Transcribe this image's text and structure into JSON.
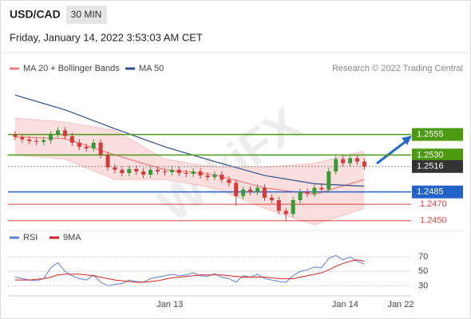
{
  "header": {
    "symbol": "USD/CAD",
    "interval": "30 MIN",
    "datetime": "Friday, January 14, 2022 3:53:03 AM CET"
  },
  "chart_data": [
    {
      "type": "candlestick",
      "credit": "Research © 2022 Trading Central",
      "watermark": "WikiFX",
      "up_color": "#3a9a3a",
      "down_color": "#d33b3b",
      "xlim": [
        0,
        56
      ],
      "ylim": [
        1.244,
        1.261
      ],
      "xticks": [
        {
          "value": 22.7,
          "label": "Jan 13"
        },
        {
          "value": 47.3,
          "label": "Jan 14"
        },
        {
          "value": 55.1,
          "label": "Jan 22"
        }
      ],
      "x": [
        1,
        2,
        3,
        4,
        5,
        6,
        7,
        8,
        9,
        10,
        11,
        12,
        13,
        14,
        15,
        16,
        17,
        18,
        19,
        20,
        21,
        22,
        23,
        24,
        25,
        26,
        27,
        28,
        29,
        30,
        31,
        32,
        33,
        34,
        35,
        36,
        37,
        38,
        39,
        40,
        41,
        42,
        43,
        44,
        45,
        46,
        47,
        48,
        49,
        50
      ],
      "open": [
        1.2555,
        1.2552,
        1.2549,
        1.2547,
        1.2546,
        1.2548,
        1.2555,
        1.256,
        1.2553,
        1.2545,
        1.254,
        1.2538,
        1.2545,
        1.253,
        1.2515,
        1.2512,
        1.2508,
        1.2513,
        1.251,
        1.2506,
        1.2512,
        1.251,
        1.2509,
        1.2512,
        1.2508,
        1.2507,
        1.251,
        1.2505,
        1.2503,
        1.2506,
        1.25,
        1.2496,
        1.248,
        1.2488,
        1.2485,
        1.249,
        1.2478,
        1.2475,
        1.2462,
        1.2458,
        1.2475,
        1.2485,
        1.2483,
        1.249,
        1.2488,
        1.251,
        1.2525,
        1.252,
        1.2526,
        1.2522
      ],
      "high": [
        1.2559,
        1.2556,
        1.2553,
        1.2551,
        1.2552,
        1.2559,
        1.2564,
        1.2564,
        1.2557,
        1.2549,
        1.2544,
        1.2549,
        1.2549,
        1.2534,
        1.2519,
        1.2516,
        1.2517,
        1.2517,
        1.2514,
        1.2516,
        1.2516,
        1.2514,
        1.2516,
        1.2516,
        1.2512,
        1.2514,
        1.2514,
        1.2509,
        1.251,
        1.251,
        1.2504,
        1.25,
        1.2492,
        1.2492,
        1.2494,
        1.2494,
        1.2482,
        1.2479,
        1.2466,
        1.2479,
        1.2489,
        1.2489,
        1.2494,
        1.2494,
        1.2514,
        1.2529,
        1.2529,
        1.253,
        1.253,
        1.2526
      ],
      "low": [
        1.2548,
        1.2545,
        1.2543,
        1.2542,
        1.2542,
        1.2544,
        1.2551,
        1.2549,
        1.2541,
        1.2536,
        1.2534,
        1.2534,
        1.2526,
        1.2511,
        1.2508,
        1.2504,
        1.2504,
        1.2506,
        1.2502,
        1.2502,
        1.2506,
        1.2505,
        1.2505,
        1.2504,
        1.2503,
        1.2503,
        1.2501,
        1.2499,
        1.2499,
        1.2496,
        1.2492,
        1.2468,
        1.2476,
        1.2481,
        1.2481,
        1.2474,
        1.2471,
        1.2458,
        1.245,
        1.2454,
        1.2471,
        1.2479,
        1.2479,
        1.2484,
        1.2484,
        1.2506,
        1.2516,
        1.2516,
        1.2518,
        1.2512
      ],
      "close": [
        1.2552,
        1.2549,
        1.2547,
        1.2546,
        1.2548,
        1.2555,
        1.256,
        1.2553,
        1.2545,
        1.254,
        1.2538,
        1.2545,
        1.253,
        1.2515,
        1.2512,
        1.2508,
        1.2513,
        1.251,
        1.2506,
        1.2512,
        1.251,
        1.2509,
        1.2512,
        1.2508,
        1.2507,
        1.251,
        1.2505,
        1.2503,
        1.2506,
        1.25,
        1.2496,
        1.248,
        1.2488,
        1.2485,
        1.249,
        1.2478,
        1.2475,
        1.2462,
        1.2458,
        1.2475,
        1.2485,
        1.2483,
        1.249,
        1.2488,
        1.251,
        1.2525,
        1.252,
        1.2526,
        1.2522,
        1.2516
      ],
      "overlays": [
        {
          "name": "MA 20 + Bollinger Bands",
          "color": "#f08080",
          "band_color": "#fbdede",
          "x": [
            1,
            8,
            15,
            22,
            29,
            36,
            43,
            50
          ],
          "values": [
            1.2552,
            1.255,
            1.253,
            1.2512,
            1.2506,
            1.249,
            1.2482,
            1.25
          ],
          "upper": [
            1.2575,
            1.257,
            1.256,
            1.2525,
            1.2515,
            1.2515,
            1.252,
            1.2535
          ],
          "lower": [
            1.253,
            1.2525,
            1.25,
            1.25,
            1.249,
            1.2465,
            1.2445,
            1.2465
          ]
        },
        {
          "name": "MA 50",
          "color": "#2b4f8a",
          "x": [
            1,
            8,
            15,
            22,
            29,
            36,
            43,
            50
          ],
          "values": [
            1.2603,
            1.2585,
            1.2562,
            1.254,
            1.2522,
            1.2505,
            1.2495,
            1.2492
          ]
        }
      ],
      "levels": [
        {
          "value": 1.2555,
          "label": "1.2555",
          "color": "#4c9a0f",
          "kind": "box"
        },
        {
          "value": 1.253,
          "label": "1.2530",
          "color": "#4c9a0f",
          "kind": "box"
        },
        {
          "value": 1.2516,
          "label": "1.2516",
          "color": "#333333",
          "kind": "current"
        },
        {
          "value": 1.2485,
          "label": "1.2485",
          "color": "#2462c9",
          "kind": "box"
        },
        {
          "value": 1.247,
          "label": "1.2470",
          "color": "#e04040",
          "kind": "text"
        },
        {
          "value": 1.245,
          "label": "1.2450",
          "color": "#e04040",
          "kind": "text"
        }
      ]
    },
    {
      "type": "line",
      "ylim": [
        15,
        90
      ],
      "yticks": [
        30,
        50,
        70
      ],
      "series": [
        {
          "name": "RSI",
          "color": "#5b7fd6",
          "values": [
            42,
            40,
            38,
            37,
            40,
            55,
            62,
            50,
            44,
            40,
            38,
            45,
            35,
            30,
            32,
            33,
            38,
            36,
            35,
            40,
            42,
            44,
            46,
            44,
            45,
            48,
            44,
            43,
            47,
            42,
            40,
            35,
            44,
            42,
            46,
            40,
            38,
            36,
            35,
            44,
            50,
            52,
            56,
            55,
            68,
            72,
            66,
            70,
            64,
            60
          ]
        },
        {
          "name": "9MA",
          "color": "#d42020",
          "values": [
            38,
            38,
            38,
            39,
            40,
            42,
            45,
            46,
            46,
            46,
            45,
            44,
            42,
            40,
            38,
            37,
            36,
            35,
            35,
            36,
            37,
            39,
            41,
            42,
            43,
            44,
            45,
            45,
            45,
            45,
            44,
            43,
            42,
            42,
            42,
            42,
            41,
            40,
            40,
            40,
            42,
            44,
            46,
            48,
            52,
            57,
            61,
            64,
            66,
            64
          ]
        }
      ]
    }
  ]
}
